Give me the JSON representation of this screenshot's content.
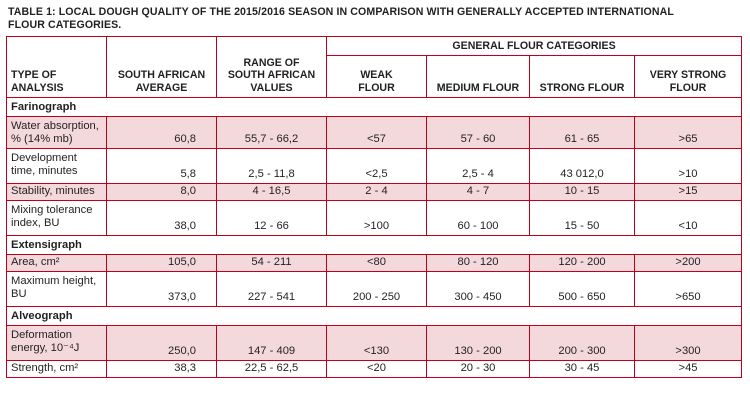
{
  "caption": {
    "line1": "TABLE 1: LOCAL DOUGH QUALITY OF THE 2015/2016 SEASON IN COMPARISON WITH GENERALLY ACCEPTED INTERNATIONAL",
    "line2": "FLOUR CATEGORIES."
  },
  "header": {
    "type": {
      "l1": "TYPE OF",
      "l2": "ANALYSIS"
    },
    "avg": {
      "l1": "SOUTH AFRICAN",
      "l2": "AVERAGE"
    },
    "range": {
      "l1": "RANGE OF",
      "l2": "SOUTH AFRICAN",
      "l3": "VALUES"
    },
    "group": "GENERAL FLOUR CATEGORIES",
    "weak": {
      "l1": "WEAK",
      "l2": "FLOUR"
    },
    "medium": "MEDIUM FLOUR",
    "strong": "STRONG FLOUR",
    "very": {
      "l1": "VERY STRONG",
      "l2": "FLOUR"
    }
  },
  "sections": {
    "farinograph": "Farinograph",
    "extensigraph": "Extensigraph",
    "alveograph": "Alveograph"
  },
  "rows": [
    {
      "l1": "Water absorption,",
      "l2": "% (14% mb)",
      "avg": "60,8",
      "range": "55,7 - 66,2",
      "weak": "<57",
      "medium": "57 - 60",
      "strong": "61 - 65",
      "very": ">65"
    },
    {
      "l1": "Development",
      "l2": "time, minutes",
      "avg": "5,8",
      "range": "2,5 - 11,8",
      "weak": "<2,5",
      "medium": "2,5 - 4",
      "strong": "43 012,0",
      "very": ">10"
    },
    {
      "l1": "Stability, minutes",
      "l2": "",
      "avg": "8,0",
      "range": "4 - 16,5",
      "weak": "2 - 4",
      "medium": "4 - 7",
      "strong": "10 - 15",
      "very": ">15"
    },
    {
      "l1": "Mixing tolerance",
      "l2": "index, BU",
      "avg": "38,0",
      "range": "12 - 66",
      "weak": ">100",
      "medium": "60 - 100",
      "strong": "15 - 50",
      "very": "<10"
    },
    {
      "l1": "Area, cm²",
      "l2": "",
      "avg": "105,0",
      "range": "54 - 211",
      "weak": "<80",
      "medium": "80 - 120",
      "strong": "120 - 200",
      "very": ">200"
    },
    {
      "l1": "Maximum height,",
      "l2": "BU",
      "avg": "373,0",
      "range": "227 - 541",
      "weak": "200 - 250",
      "medium": "300 - 450",
      "strong": "500 - 650",
      "very": ">650"
    },
    {
      "l1": "Deformation",
      "l2": "energy, 10⁻⁴J",
      "avg": "250,0",
      "range": "147 - 409",
      "weak": "<130",
      "medium": "130 - 200",
      "strong": "200 - 300",
      "very": ">300"
    },
    {
      "l1": "Strength, cm²",
      "l2": "",
      "avg": "38,3",
      "range": "22,5 - 62,5",
      "weak": "<20",
      "medium": "20 - 30",
      "strong": "30 - 45",
      "very": ">45"
    }
  ],
  "colors": {
    "border": "#c0001b",
    "shade": "#f4d9dc",
    "text": "#231f20"
  }
}
